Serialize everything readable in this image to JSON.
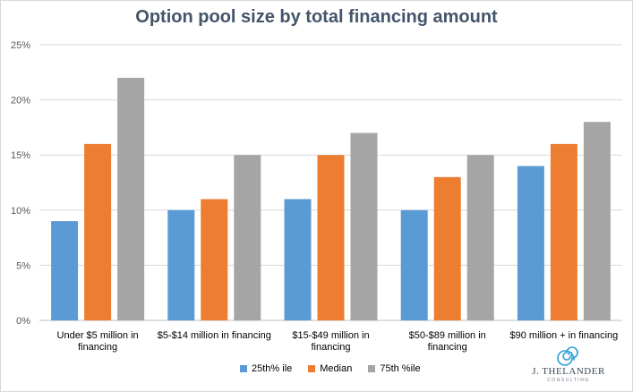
{
  "chart_data": {
    "type": "bar",
    "title": "Option pool size by total financing amount",
    "categories": [
      [
        "Under $5 million in",
        "financing"
      ],
      [
        "$5-$14 million in financing"
      ],
      [
        "$15-$49 million in",
        "financing"
      ],
      [
        "$50-$89 million in",
        "financing"
      ],
      [
        "$90 million + in financing"
      ]
    ],
    "series": [
      {
        "name": "25th% ile",
        "color": "#5b9bd5",
        "values": [
          9,
          10,
          11,
          10,
          14
        ]
      },
      {
        "name": "Median",
        "color": "#ed7d31",
        "values": [
          16,
          11,
          15,
          13,
          16
        ]
      },
      {
        "name": "75th %ile",
        "color": "#a5a5a5",
        "values": [
          22,
          15,
          17,
          15,
          18
        ]
      }
    ],
    "ylim": [
      0,
      25
    ],
    "yticks": [
      "0%",
      "5%",
      "10%",
      "15%",
      "20%",
      "25%"
    ],
    "grid": true,
    "legend_position": "bottom"
  },
  "logo": {
    "name": "J. THELANDER",
    "sub": "CONSULTING",
    "icon": "spiral-icon"
  }
}
